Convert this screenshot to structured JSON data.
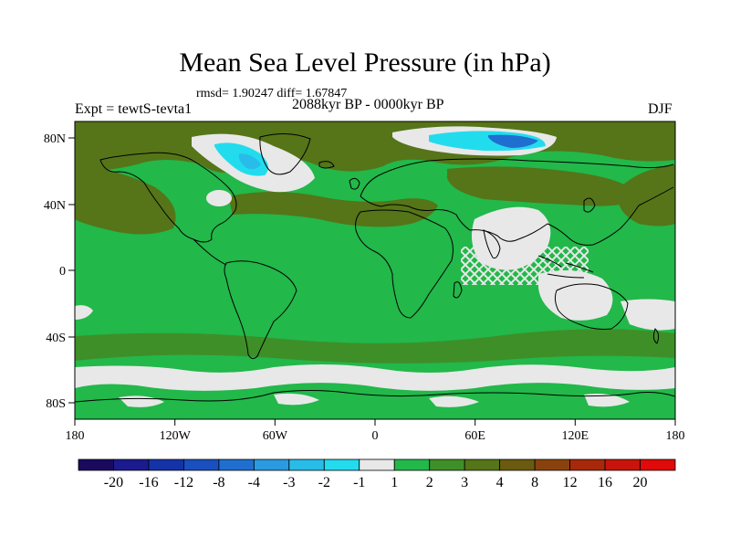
{
  "title": "Mean Sea Level Pressure (in hPa)",
  "stats": "rmsd= 1.90247 diff= 1.67847",
  "experiment": "Expt = tewtS-tevta1",
  "period": "2088kyr BP - 0000kyr BP",
  "season": "DJF",
  "map": {
    "projection": "cylindrical equidistant",
    "lon_range": [
      -180,
      180
    ],
    "lat_range": [
      -90,
      90
    ],
    "x_ticks": [
      "180",
      "120W",
      "60W",
      "0",
      "60E",
      "120E",
      "180"
    ],
    "y_ticks": [
      "80N",
      "40N",
      "0",
      "40S",
      "80S"
    ]
  },
  "colorbar": {
    "labels": [
      "-20",
      "-16",
      "-12",
      "-8",
      "-4",
      "-3",
      "-2",
      "-1",
      "1",
      "2",
      "3",
      "4",
      "8",
      "12",
      "16",
      "20"
    ],
    "colors": [
      "#1a0a5e",
      "#1b1a8f",
      "#1433a8",
      "#1a4fc0",
      "#1f6fd0",
      "#2a9be0",
      "#28bde8",
      "#22dcee",
      "#e8e8e8",
      "#22b84a",
      "#3e8f28",
      "#557518",
      "#6b5b10",
      "#8a420c",
      "#a8280a",
      "#c8140a",
      "#e00a0a"
    ]
  },
  "chart_data": {
    "type": "heatmap",
    "title": "Mean Sea Level Pressure (in hPa)",
    "units": "hPa",
    "levels": [
      -20,
      -16,
      -12,
      -8,
      -4,
      -3,
      -2,
      -1,
      1,
      2,
      3,
      4,
      8,
      12,
      16,
      20
    ],
    "dominant_range": "1 to 2",
    "regions": [
      {
        "name": "Arctic / Siberia north coast",
        "range": "-4 to -1"
      },
      {
        "name": "North Atlantic / Greenland",
        "range": "-2 to 1"
      },
      {
        "name": "North Pacific / Arctic belt",
        "range": "3 to 4"
      },
      {
        "name": "Indian Ocean / Maritime Continent",
        "range": "-1 to 1"
      },
      {
        "name": "Southern Ocean band near 60S",
        "range": "-1 to 1"
      },
      {
        "name": "Tropics and most oceans",
        "range": "1 to 2"
      }
    ]
  }
}
